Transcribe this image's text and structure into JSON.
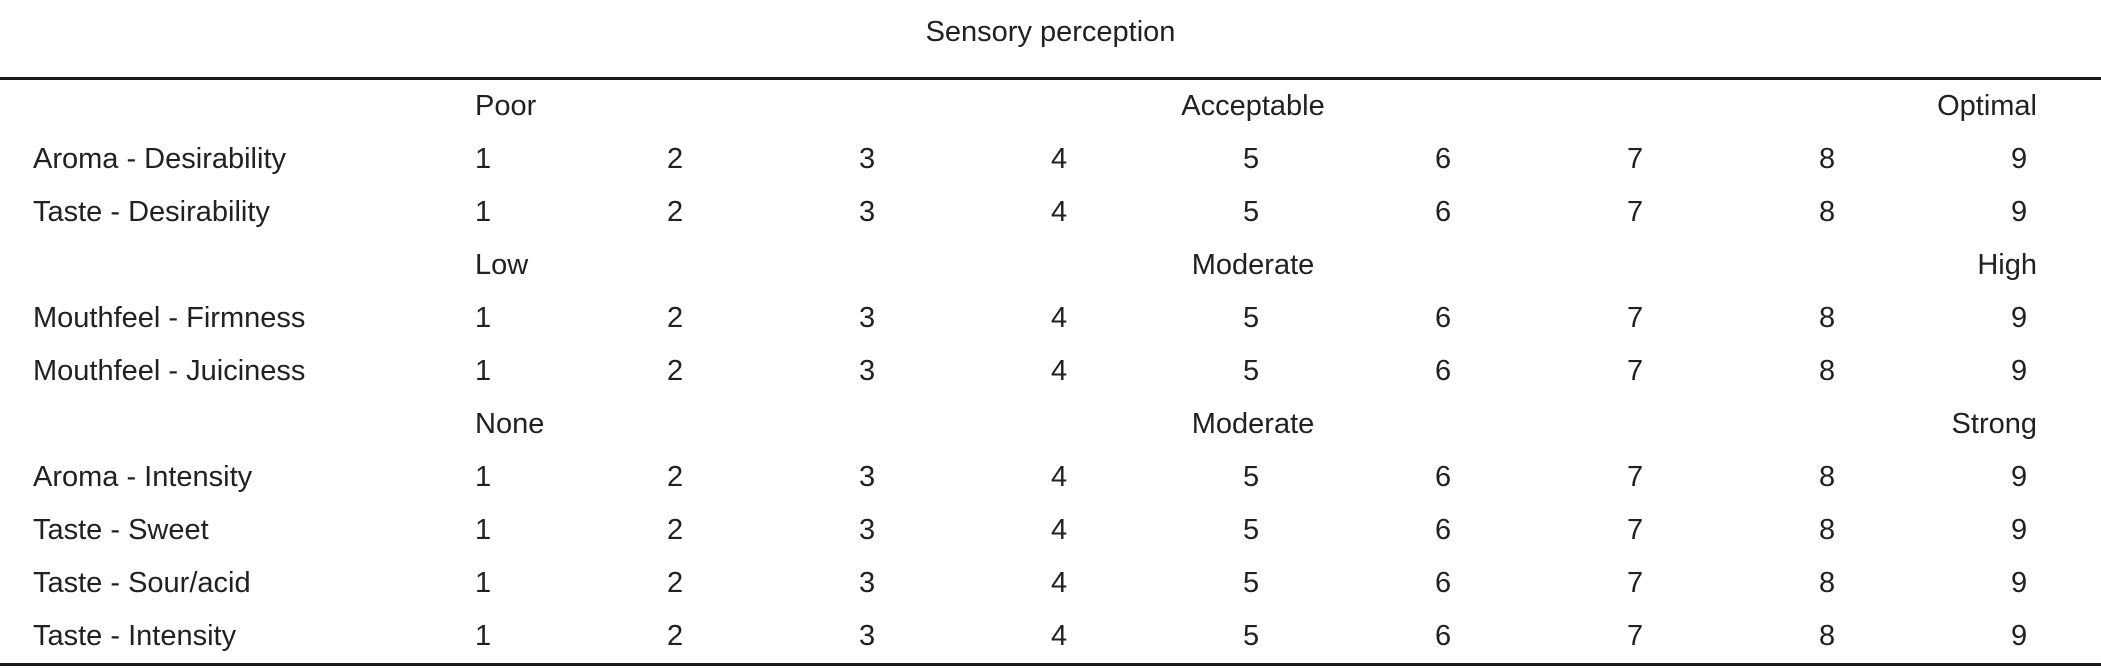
{
  "title": "Sensory perception",
  "colors": {
    "text": "#212121",
    "rule": "#1a1a1a",
    "background": "#ffffff"
  },
  "scale_points": [
    "1",
    "2",
    "3",
    "4",
    "5",
    "6",
    "7",
    "8",
    "9"
  ],
  "sections": [
    {
      "anchors": {
        "left": "Poor",
        "center": "Acceptable",
        "right": "Optimal"
      },
      "rows": [
        {
          "label": "Aroma - Desirability",
          "values": [
            "1",
            "2",
            "3",
            "4",
            "5",
            "6",
            "7",
            "8",
            "9"
          ]
        },
        {
          "label": "Taste - Desirability",
          "values": [
            "1",
            "2",
            "3",
            "4",
            "5",
            "6",
            "7",
            "8",
            "9"
          ]
        }
      ]
    },
    {
      "anchors": {
        "left": "Low",
        "center": "Moderate",
        "right": "High"
      },
      "rows": [
        {
          "label": "Mouthfeel - Firmness",
          "values": [
            "1",
            "2",
            "3",
            "4",
            "5",
            "6",
            "7",
            "8",
            "9"
          ]
        },
        {
          "label": "Mouthfeel - Juiciness",
          "values": [
            "1",
            "2",
            "3",
            "4",
            "5",
            "6",
            "7",
            "8",
            "9"
          ]
        }
      ]
    },
    {
      "anchors": {
        "left": "None",
        "center": "Moderate",
        "right": "Strong"
      },
      "rows": [
        {
          "label": "Aroma - Intensity",
          "values": [
            "1",
            "2",
            "3",
            "4",
            "5",
            "6",
            "7",
            "8",
            "9"
          ]
        },
        {
          "label": "Taste - Sweet",
          "values": [
            "1",
            "2",
            "3",
            "4",
            "5",
            "6",
            "7",
            "8",
            "9"
          ]
        },
        {
          "label": "Taste - Sour/acid",
          "values": [
            "1",
            "2",
            "3",
            "4",
            "5",
            "6",
            "7",
            "8",
            "9"
          ]
        },
        {
          "label": "Taste - Intensity",
          "values": [
            "1",
            "2",
            "3",
            "4",
            "5",
            "6",
            "7",
            "8",
            "9"
          ]
        }
      ]
    }
  ]
}
